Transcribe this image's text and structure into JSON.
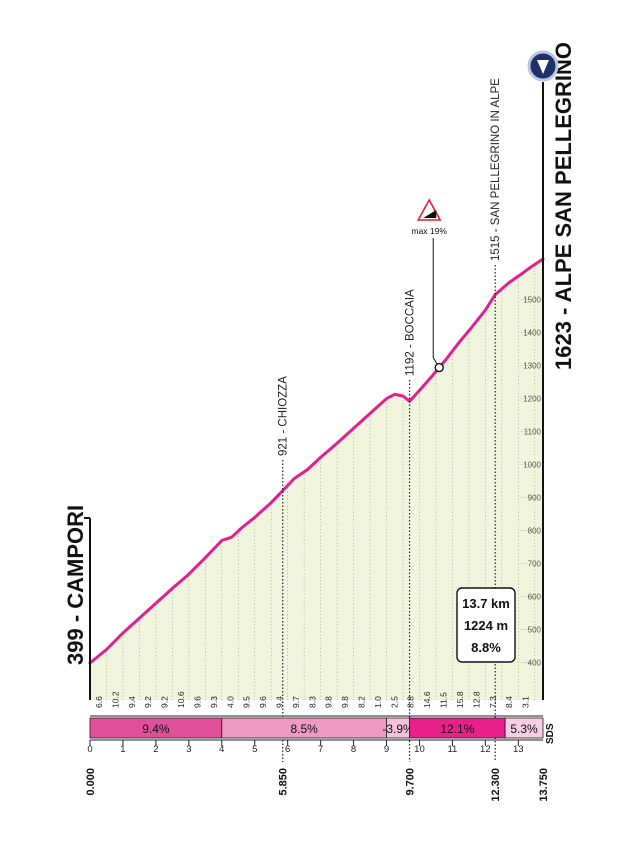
{
  "chart_data": {
    "type": "area",
    "orientation": "rotated-90-ccw",
    "start_label": "399 - CAMPORI",
    "finish_label": "1623 - ALPE SAN PELLEGRINO",
    "brand_mark": "SDS",
    "x_unit": "km",
    "y_unit": "m",
    "x_range": [
      0,
      13.75
    ],
    "y_range": [
      399,
      1623
    ],
    "y_ticks": [
      400,
      500,
      600,
      700,
      800,
      900,
      1000,
      1100,
      1200,
      1300,
      1400,
      1500
    ],
    "km_ticks": [
      "0",
      "1",
      "2",
      "3",
      "4",
      "5",
      "6",
      "7",
      "8",
      "9",
      "10",
      "11",
      "12",
      "13"
    ],
    "profile": [
      {
        "x": 0.0,
        "y": 399
      },
      {
        "x": 0.5,
        "y": 440
      },
      {
        "x": 1.0,
        "y": 490
      },
      {
        "x": 1.5,
        "y": 535
      },
      {
        "x": 2.0,
        "y": 580
      },
      {
        "x": 2.5,
        "y": 625
      },
      {
        "x": 3.0,
        "y": 668
      },
      {
        "x": 3.5,
        "y": 718
      },
      {
        "x": 4.0,
        "y": 770
      },
      {
        "x": 4.3,
        "y": 780
      },
      {
        "x": 4.6,
        "y": 808
      },
      {
        "x": 5.0,
        "y": 840
      },
      {
        "x": 5.5,
        "y": 885
      },
      {
        "x": 5.85,
        "y": 921
      },
      {
        "x": 6.2,
        "y": 958
      },
      {
        "x": 6.6,
        "y": 985
      },
      {
        "x": 7.0,
        "y": 1022
      },
      {
        "x": 7.5,
        "y": 1065
      },
      {
        "x": 8.0,
        "y": 1110
      },
      {
        "x": 8.5,
        "y": 1155
      },
      {
        "x": 9.0,
        "y": 1200
      },
      {
        "x": 9.25,
        "y": 1213
      },
      {
        "x": 9.5,
        "y": 1208
      },
      {
        "x": 9.7,
        "y": 1192
      },
      {
        "x": 10.0,
        "y": 1225
      },
      {
        "x": 10.4,
        "y": 1270
      },
      {
        "x": 10.8,
        "y": 1318
      },
      {
        "x": 11.2,
        "y": 1370
      },
      {
        "x": 11.6,
        "y": 1418
      },
      {
        "x": 12.0,
        "y": 1468
      },
      {
        "x": 12.3,
        "y": 1515
      },
      {
        "x": 12.7,
        "y": 1550
      },
      {
        "x": 13.1,
        "y": 1578
      },
      {
        "x": 13.4,
        "y": 1600
      },
      {
        "x": 13.75,
        "y": 1623
      }
    ],
    "km_gradients": [
      "6.6",
      "10.2",
      "9.4",
      "9.2",
      "9.2",
      "10.6",
      "9.6",
      "9.3",
      "4.0",
      "9.5",
      "9.6",
      "9.4",
      "9.7",
      "8.3",
      "9.8",
      "9.8",
      "8.2",
      "1.0",
      "2.5",
      "8.8",
      "14.6",
      "11.5",
      "15.8",
      "12.8",
      "7.3",
      "8.4",
      "3.1"
    ],
    "segments": [
      {
        "from": 0,
        "to": 4.0,
        "label": "9.4%",
        "color": "#e04f9a"
      },
      {
        "from": 4.0,
        "to": 9.0,
        "label": "8.5%",
        "color": "#ef9ac3"
      },
      {
        "from": 9.0,
        "to": 9.7,
        "label": "-3.9%",
        "color": "#f5c2dc"
      },
      {
        "from": 9.7,
        "to": 12.6,
        "label": "12.1%",
        "color": "#e8208a"
      },
      {
        "from": 12.6,
        "to": 13.75,
        "label": "5.3%",
        "color": "#f6cfe2"
      }
    ],
    "waypoints": [
      {
        "x": 5.85,
        "label": "921 - CHIOZZA"
      },
      {
        "x": 9.7,
        "label": "1192 - BOCCAIA"
      },
      {
        "x": 12.3,
        "label": "1515 - SAN PELLEGRINO IN ALPE"
      }
    ],
    "distance_labels": [
      "0.000",
      "5.850",
      "9.700",
      "12.300",
      "13.750"
    ],
    "max_gradient": {
      "label": "max 19%",
      "x": 10.6
    },
    "summary": [
      "13.7 km",
      "1224 m",
      "8.8%"
    ],
    "colors": {
      "line": "#e0208c",
      "fill": "#f2f5dd",
      "grid": "#9aa08a",
      "pin": "#1f2f6a",
      "text": "#222222"
    }
  }
}
